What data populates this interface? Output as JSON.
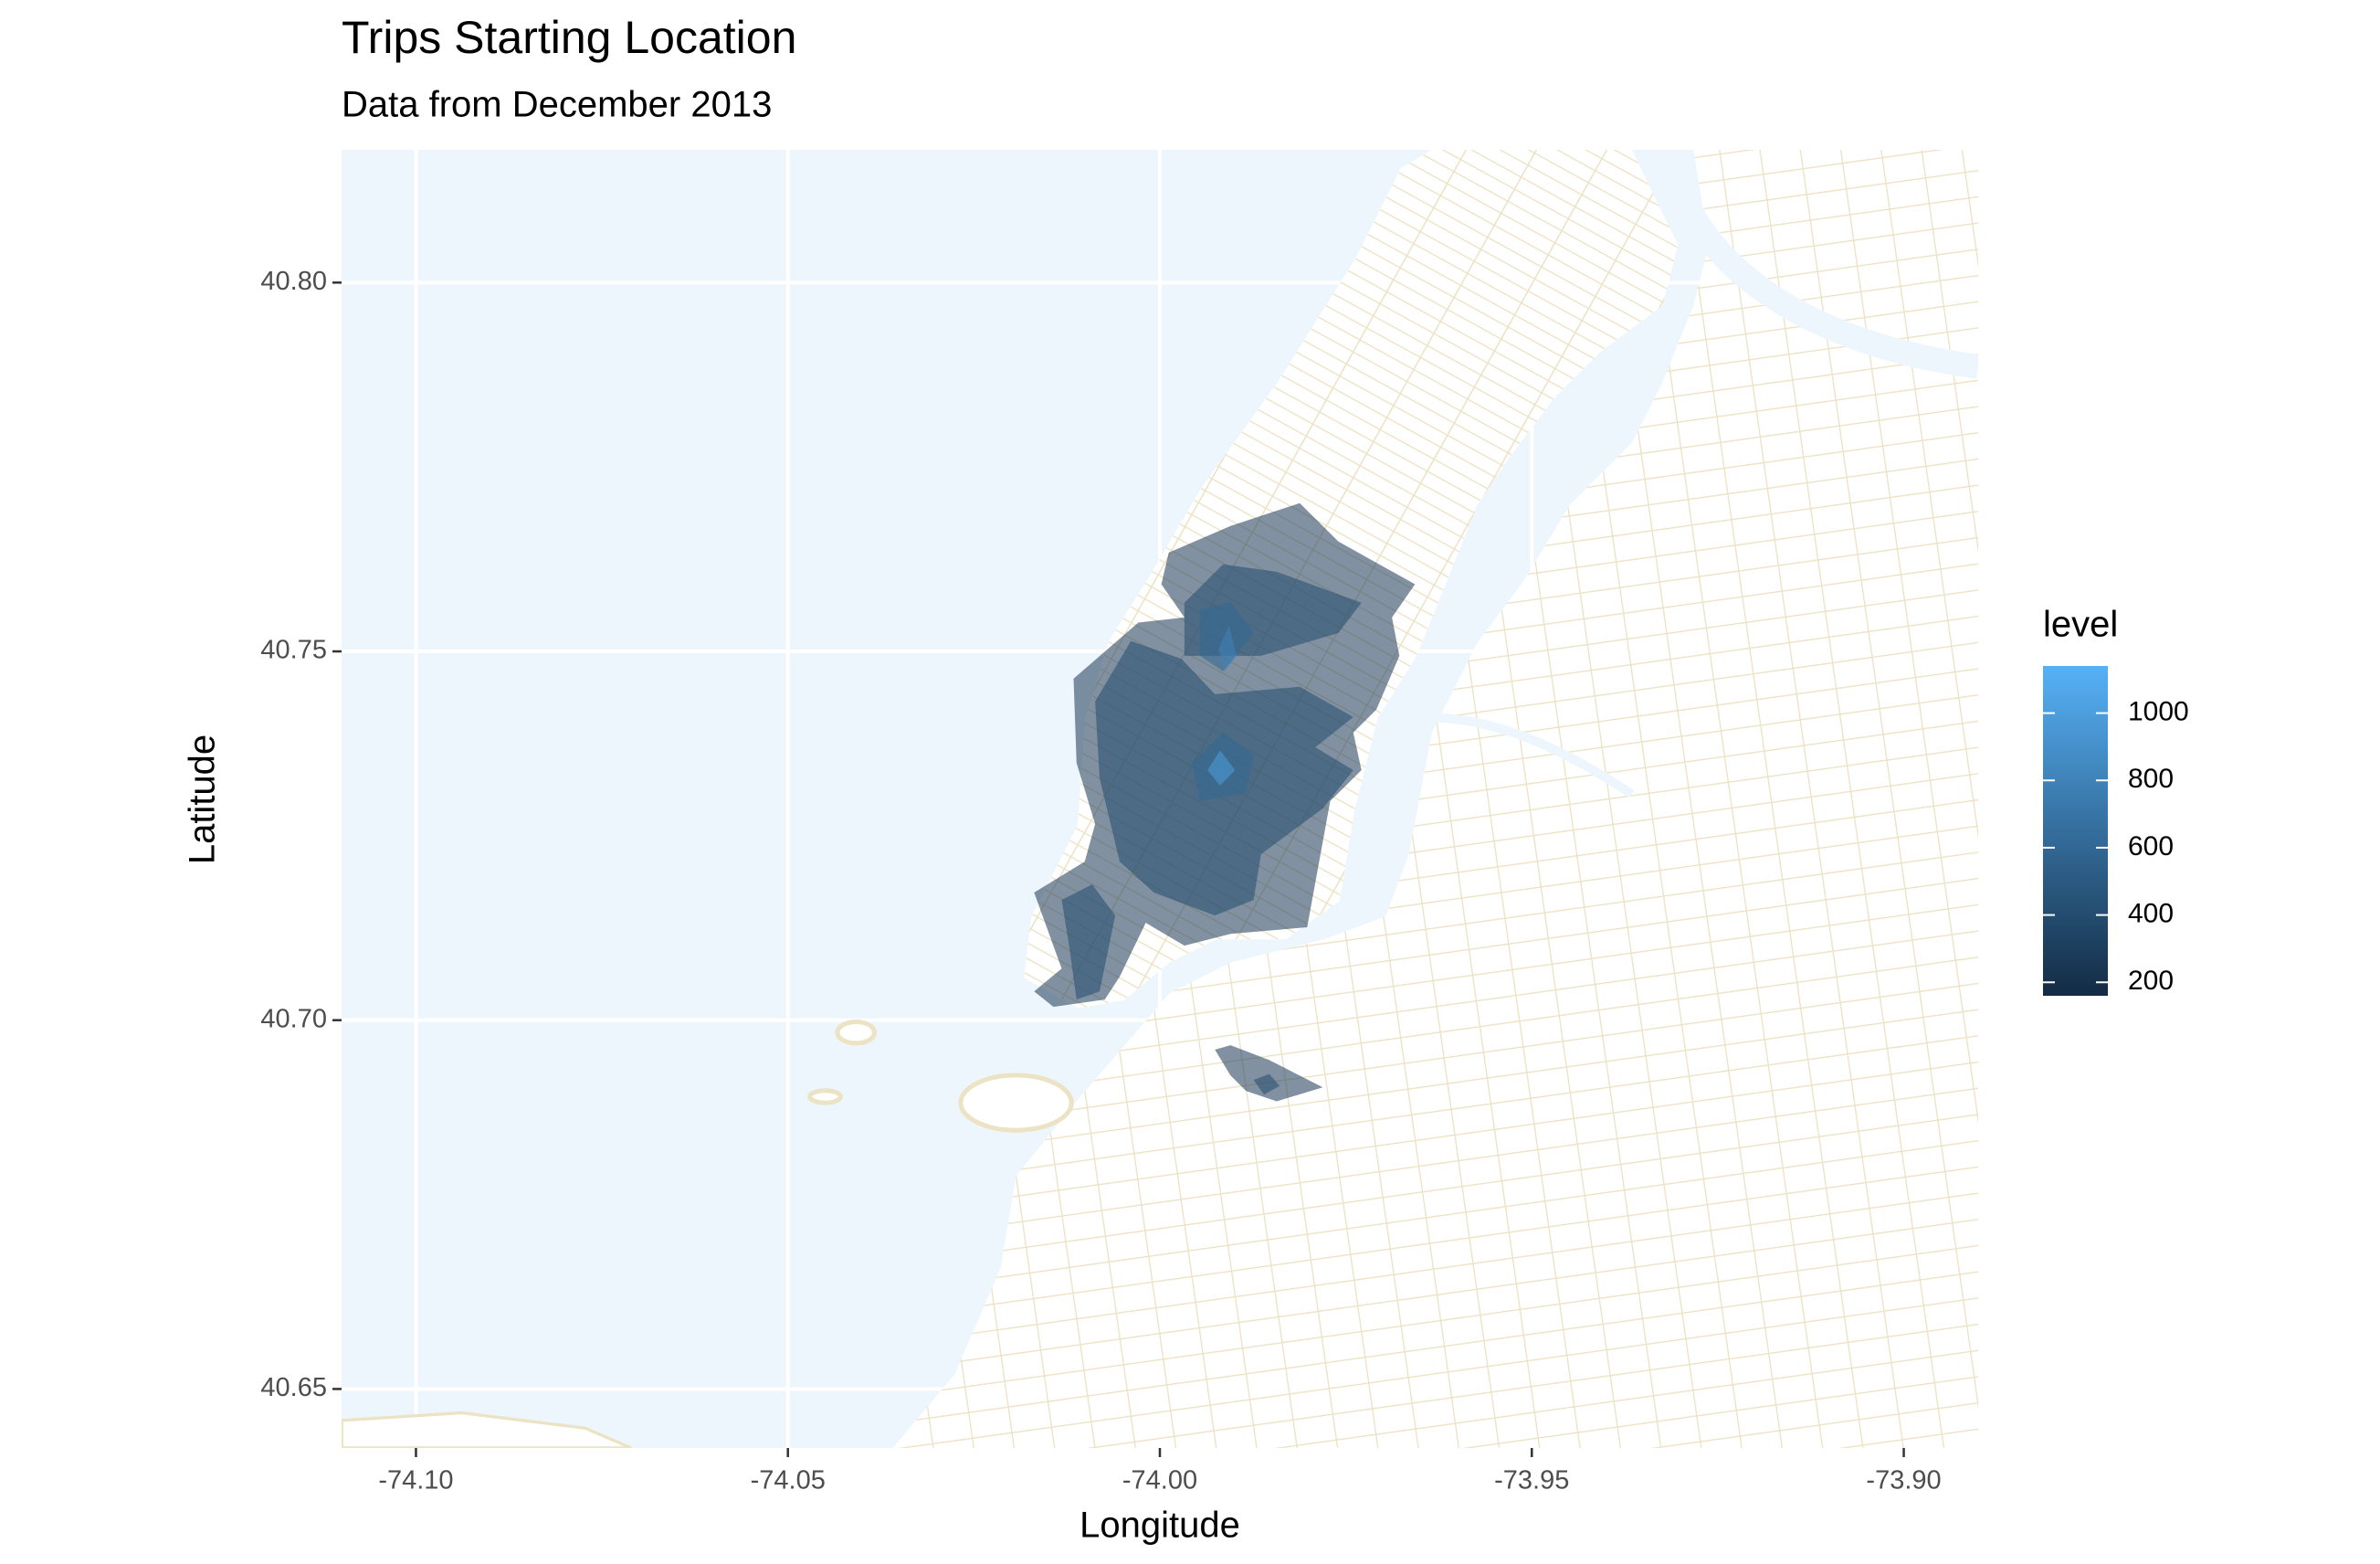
{
  "chart_data": {
    "type": "contour",
    "title": "Trips Starting Location",
    "subtitle": "Data from December 2013",
    "x_label": "Longitude",
    "y_label": "Latitude",
    "xlim": [
      -74.11,
      -73.89
    ],
    "ylim": [
      40.642,
      40.818
    ],
    "xticks": [
      {
        "value": -74.1,
        "label": "-74.10"
      },
      -74.05,
      {
        "value": -74.0,
        "label": "-74.00"
      },
      -73.95,
      {
        "value": -73.9,
        "label": "-73.90"
      }
    ],
    "yticks": [
      {
        "value": 40.65,
        "label": "40.65"
      },
      {
        "value": 40.7,
        "label": "40.70"
      },
      40.75,
      {
        "value": 40.8,
        "label": "40.80"
      }
    ],
    "grid": true,
    "fill_alpha": 0.55,
    "legend": {
      "title": "level",
      "low_color": "#132B43",
      "high_color": "#56B1F7",
      "limits": [
        160,
        1140
      ],
      "ticks": [
        200,
        400,
        600,
        800,
        1000
      ]
    },
    "polygons": [
      {
        "level": 250,
        "lon": [
          -73.9998,
          -73.9988,
          -73.9905,
          -73.9812,
          -73.976,
          -73.9657,
          -73.9688,
          -73.9678,
          -73.9709,
          -73.974,
          -73.9729,
          -73.9771,
          -73.9802,
          -73.9905,
          -73.9967,
          -74.0019,
          -74.0054,
          -74.0074,
          -74.0143,
          -74.0169,
          -74.0132,
          -74.0169,
          -74.0101,
          -74.0087,
          -74.0112,
          -74.0116,
          -74.0029,
          -73.9967
        ],
        "lat": [
          40.7591,
          40.7634,
          40.767,
          40.7701,
          40.7649,
          40.7591,
          40.7546,
          40.7494,
          40.7421,
          40.739,
          40.7339,
          40.7297,
          40.7126,
          40.7117,
          40.7101,
          40.7132,
          40.7059,
          40.7028,
          40.7018,
          40.7039,
          40.707,
          40.7173,
          40.7215,
          40.7266,
          40.7349,
          40.7463,
          40.7539,
          40.7546
        ]
      },
      {
        "level": 250,
        "lon": [
          -73.9926,
          -73.9905,
          -73.9853,
          -73.9781,
          -73.9843,
          -73.9884,
          -73.9905
        ],
        "lat": [
          40.696,
          40.6966,
          40.6946,
          40.6909,
          40.689,
          40.6904,
          40.6925
        ]
      },
      {
        "level": 400,
        "lon": [
          -74.0039,
          -73.9971,
          -73.9926,
          -73.9812,
          -73.974,
          -73.9791,
          -73.974,
          -73.9781,
          -73.9864,
          -73.9874,
          -73.9926,
          -74.0008,
          -74.0054,
          -74.0081,
          -74.0087
        ],
        "lat": [
          40.7514,
          40.749,
          40.7442,
          40.7452,
          40.7411,
          40.737,
          40.7339,
          40.7287,
          40.7225,
          40.7163,
          40.7142,
          40.7173,
          40.7215,
          40.7328,
          40.7432
        ]
      },
      {
        "level": 400,
        "lon": [
          -73.9967,
          -73.9915,
          -73.9843,
          -73.9729,
          -73.976,
          -73.9864,
          -73.9967
        ],
        "lat": [
          40.7566,
          40.7618,
          40.7608,
          40.7566,
          40.7525,
          40.7494,
          40.7494
        ]
      },
      {
        "level": 400,
        "lon": [
          -74.0132,
          -74.0091,
          -74.006,
          -74.0081,
          -74.0112,
          -74.0122
        ],
        "lat": [
          40.7163,
          40.7184,
          40.7142,
          40.7039,
          40.7028,
          40.7101
        ]
      },
      {
        "level": 400,
        "lon": [
          -73.9874,
          -73.9853,
          -73.9839,
          -73.986
        ],
        "lat": [
          40.6919,
          40.6927,
          40.6911,
          40.6899
        ]
      },
      {
        "level": 600,
        "lon": [
          -73.9946,
          -73.9905,
          -73.9874,
          -73.9915,
          -73.9946
        ],
        "lat": [
          40.7556,
          40.7567,
          40.7525,
          40.7473,
          40.7494
        ]
      },
      {
        "level": 600,
        "lon": [
          -73.9957,
          -73.9915,
          -73.9874,
          -73.9884,
          -73.9946
        ],
        "lat": [
          40.7349,
          40.739,
          40.7359,
          40.7308,
          40.7297
        ]
      },
      {
        "level": 800,
        "lon": [
          -73.9921,
          -73.9907,
          -73.9897,
          -73.9913
        ],
        "lat": [
          40.7504,
          40.7535,
          40.7494,
          40.7473
        ]
      },
      {
        "level": 1000,
        "lon": [
          -73.9936,
          -73.9919,
          -73.9899,
          -73.9919
        ],
        "lat": [
          40.7339,
          40.7366,
          40.7339,
          40.7318
        ]
      }
    ]
  }
}
